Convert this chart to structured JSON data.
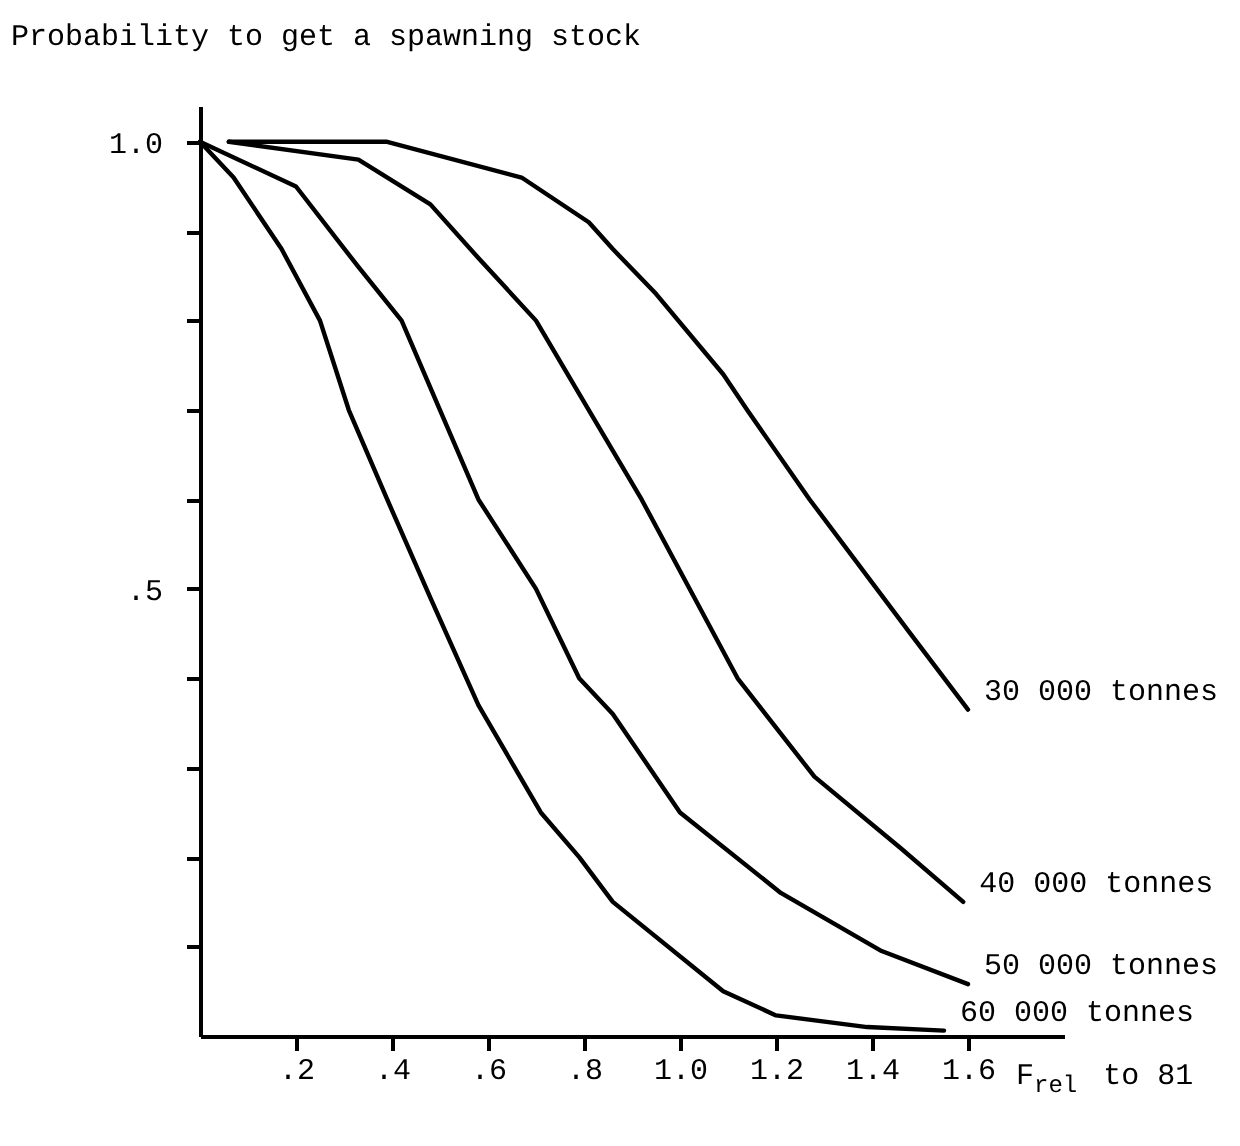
{
  "chart_data": {
    "type": "line",
    "ylabel": "Probability to get a spawning stock",
    "xlabel": "F$_{rel}$ to 81",
    "xlim": [
      0,
      1.8
    ],
    "ylim": [
      0,
      1.04
    ],
    "xticks": [
      {
        "value": 0.2,
        "label": ".2"
      },
      {
        "value": 0.4,
        "label": ".4"
      },
      {
        "value": 0.6,
        "label": ".6"
      },
      {
        "value": 0.8,
        "label": ".8"
      },
      {
        "value": 1.0,
        "label": "1.0"
      },
      {
        "value": 1.2,
        "label": "1.2"
      },
      {
        "value": 1.4,
        "label": "1.4"
      },
      {
        "value": 1.6,
        "label": "1.6"
      }
    ],
    "yticks": [
      {
        "value": 0.1,
        "label": null
      },
      {
        "value": 0.2,
        "label": null
      },
      {
        "value": 0.3,
        "label": null
      },
      {
        "value": 0.4,
        "label": null
      },
      {
        "value": 0.5,
        "label": ".5"
      },
      {
        "value": 0.6,
        "label": null
      },
      {
        "value": 0.7,
        "label": null
      },
      {
        "value": 0.8,
        "label": null
      },
      {
        "value": 0.9,
        "label": null
      },
      {
        "value": 1.0,
        "label": "1.0"
      }
    ],
    "grid": false,
    "legend": false,
    "line_style": "solid",
    "marker": "none",
    "series": [
      {
        "name": "30 000 tonnes",
        "color": "#000000",
        "x": [
          0.06,
          0.39,
          0.67,
          0.81,
          0.86,
          0.95,
          1.09,
          1.14,
          1.27,
          1.48,
          1.6
        ],
        "values": [
          1.0,
          1.0,
          0.96,
          0.91,
          0.88,
          0.83,
          0.74,
          0.7,
          0.6,
          0.45,
          0.365
        ]
      },
      {
        "name": "40 000 tonnes",
        "color": "#000000",
        "x": [
          0.06,
          0.33,
          0.48,
          0.58,
          0.7,
          0.81,
          0.92,
          1.03,
          1.12,
          1.28,
          1.46,
          1.59
        ],
        "values": [
          1.0,
          0.98,
          0.93,
          0.87,
          0.8,
          0.7,
          0.6,
          0.49,
          0.4,
          0.29,
          0.21,
          0.15
        ]
      },
      {
        "name": "50 000 tonnes",
        "color": "#000000",
        "x": [
          0,
          0.2,
          0.33,
          0.42,
          0.5,
          0.58,
          0.7,
          0.79,
          0.86,
          1.0,
          1.21,
          1.42,
          1.6
        ],
        "values": [
          1.0,
          0.95,
          0.86,
          0.8,
          0.7,
          0.6,
          0.5,
          0.4,
          0.36,
          0.25,
          0.16,
          0.095,
          0.058
        ]
      },
      {
        "name": "60 000 tonnes",
        "color": "#000000",
        "x": [
          0,
          0.07,
          0.17,
          0.25,
          0.31,
          0.39,
          0.48,
          0.58,
          0.71,
          0.79,
          0.86,
          1.09,
          1.2,
          1.39,
          1.55
        ],
        "values": [
          1.0,
          0.96,
          0.88,
          0.8,
          0.7,
          0.6,
          0.49,
          0.37,
          0.25,
          0.2,
          0.15,
          0.05,
          0.023,
          0.01,
          0.006
        ]
      }
    ]
  }
}
